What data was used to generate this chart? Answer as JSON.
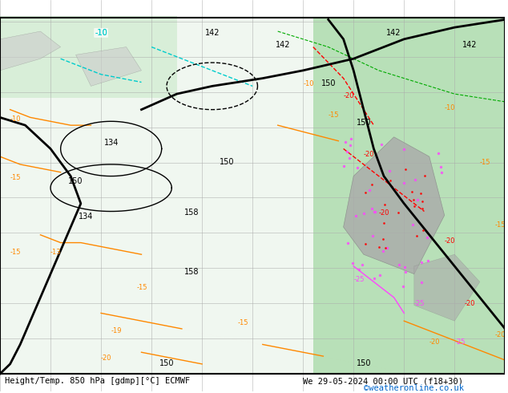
{
  "title_left": "Height/Temp. 850 hPa [gdmp][°C] ECMWF",
  "title_right": "We 29-05-2024 00:00 UTC (f18+30)",
  "copyright": "©weatheronline.co.uk",
  "bg_color": "#ffffff",
  "map_bg": "#e8f4e8",
  "border_color": "#000000",
  "grid_color": "#aaaaaa",
  "figsize": [
    6.34,
    4.9
  ],
  "dpi": 100,
  "bottom_label_color": "#000000",
  "copyright_color": "#0066cc",
  "contour_colors": {
    "z500_black": "#000000",
    "temp_orange": "#ff8800",
    "temp_red": "#ff0000",
    "temp_cyan": "#00cccc",
    "temp_green": "#00aa00",
    "temp_pink": "#ff44ff",
    "temp_purple": "#880088"
  },
  "land_color": "#cccccc",
  "sea_color": "#e0f0ff",
  "green_area_color": "#c8eac8",
  "annotation_fontsize": 7.5,
  "title_fontsize": 7.5,
  "copyright_fontsize": 7.5
}
